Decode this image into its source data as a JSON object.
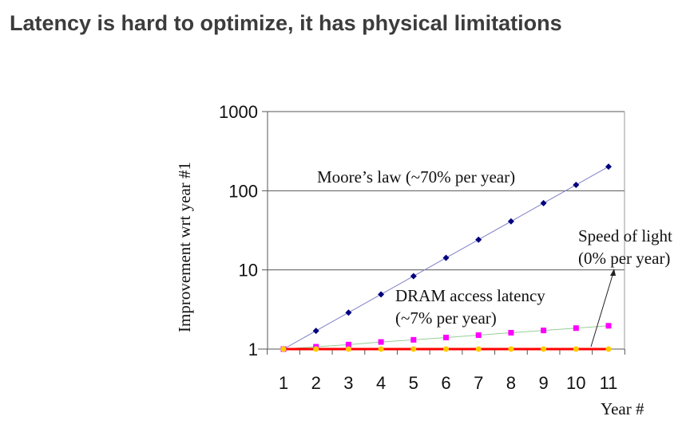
{
  "slide": {
    "title": "Latency is hard to optimize, it has physical limitations"
  },
  "chart_data": {
    "type": "line",
    "title": "",
    "xlabel": "Year #",
    "ylabel": "Improvement wrt year #1",
    "yscale": "log",
    "ylim": [
      1,
      1000
    ],
    "y_ticks": [
      "1",
      "10",
      "100",
      "1000"
    ],
    "x": [
      1,
      2,
      3,
      4,
      5,
      6,
      7,
      8,
      9,
      10,
      11
    ],
    "x_ticks": [
      "1",
      "2",
      "3",
      "4",
      "5",
      "6",
      "7",
      "8",
      "9",
      "10",
      "11"
    ],
    "grid": "horizontal",
    "series": [
      {
        "name": "Moore's law",
        "label": "Moore’s law (~70% per year)",
        "color": "#00007f",
        "line_color": "#8080c8",
        "marker": "diamond",
        "values": [
          1,
          1.7,
          2.89,
          4.91,
          8.35,
          14.2,
          24.1,
          41.0,
          69.8,
          118.6,
          201.6
        ]
      },
      {
        "name": "DRAM access latency",
        "label_line1": "DRAM access latency",
        "label_line2": "(~7% per year)",
        "color": "#ff00ff",
        "line_color": "#99cc99",
        "marker": "square",
        "values": [
          1,
          1.07,
          1.14,
          1.23,
          1.31,
          1.4,
          1.5,
          1.61,
          1.72,
          1.84,
          1.97
        ]
      },
      {
        "name": "Speed of light",
        "label_line1": "Speed of light",
        "label_line2": "(0% per year)",
        "color": "#ffcc00",
        "line_color": "#ff0000",
        "marker": "circle",
        "values": [
          1,
          1,
          1,
          1,
          1,
          1,
          1,
          1,
          1,
          1,
          1
        ]
      }
    ],
    "annotations": [
      {
        "text": "Moore’s law (~70% per year)",
        "target": "Moore's law"
      },
      {
        "text": "DRAM access latency (~7% per year)",
        "target": "DRAM access latency"
      },
      {
        "text": "Speed of light (0% per year)",
        "target": "Speed of light",
        "arrow": true
      }
    ]
  }
}
